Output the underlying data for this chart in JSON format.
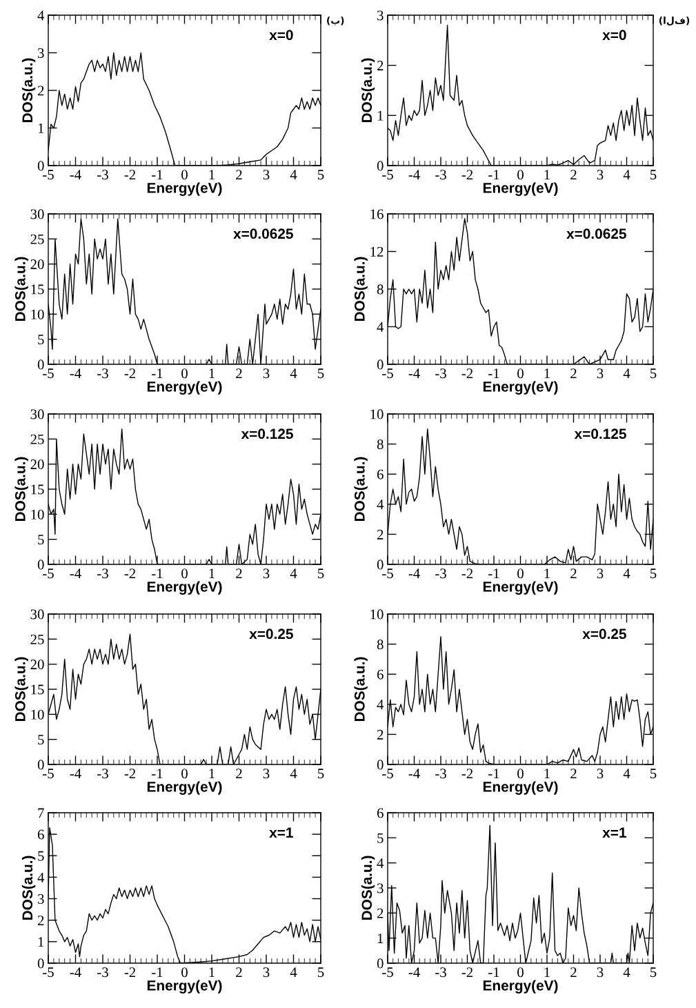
{
  "chart_data": [
    {
      "type": "line",
      "xlabel": "Energy(eV)",
      "ylabel": "DOS(a.u.)",
      "annotations": [
        "x=0",
        "(ب)"
      ],
      "xlim": [
        -5,
        5
      ],
      "xticks": [
        -5,
        -4,
        -3,
        -2,
        -1,
        0,
        1,
        2,
        3,
        4,
        5
      ],
      "ylim": [
        0,
        4
      ],
      "yticks": [
        0,
        1,
        2,
        3,
        4
      ],
      "series": [
        {
          "color": "#000000",
          "x": [
            -5,
            -4.9,
            -4.8,
            -4.7,
            -4.6,
            -4.5,
            -4.4,
            -4.3,
            -4.2,
            -4.1,
            -4.0,
            -3.9,
            -3.8,
            -3.7,
            -3.6,
            -3.5,
            -3.4,
            -3.3,
            -3.2,
            -3.1,
            -3.0,
            -2.9,
            -2.8,
            -2.7,
            -2.6,
            -2.5,
            -2.4,
            -2.3,
            -2.2,
            -2.1,
            -2.0,
            -1.9,
            -1.8,
            -1.7,
            -1.6,
            -1.5,
            -1.3,
            -1.1,
            -0.9,
            -0.7,
            -0.5,
            -0.35,
            1.2,
            1.6,
            2.0,
            2.4,
            2.8,
            3.0,
            3.2,
            3.4,
            3.6,
            3.8,
            3.9,
            4.0,
            4.1,
            4.2,
            4.3,
            4.4,
            4.5,
            4.6,
            4.7,
            4.8,
            4.9,
            5
          ],
          "values": [
            0.4,
            1.1,
            1.0,
            1.3,
            2.0,
            1.6,
            1.9,
            1.5,
            1.8,
            1.5,
            2.1,
            1.7,
            2.2,
            2.3,
            2.5,
            2.7,
            2.8,
            2.5,
            2.8,
            2.6,
            2.7,
            2.5,
            2.9,
            2.3,
            3.0,
            2.4,
            2.8,
            2.5,
            2.9,
            2.5,
            2.9,
            2.5,
            2.8,
            2.5,
            3.0,
            2.3,
            2.0,
            1.6,
            1.3,
            0.9,
            0.4,
            0,
            0,
            0.02,
            0.05,
            0.1,
            0.15,
            0.3,
            0.4,
            0.5,
            0.7,
            1.0,
            1.4,
            1.5,
            1.6,
            1.5,
            1.8,
            1.5,
            1.7,
            1.5,
            1.8,
            1.6,
            1.8,
            1.6
          ]
        }
      ]
    },
    {
      "type": "line",
      "xlabel": "Energy(eV)",
      "ylabel": "DOS(a.u.)",
      "annotations": [
        "x=0",
        "(الف)"
      ],
      "xlim": [
        -5,
        5
      ],
      "xticks": [
        -5,
        -4,
        -3,
        -2,
        -1,
        0,
        1,
        2,
        3,
        4,
        5
      ],
      "ylim": [
        0,
        3
      ],
      "yticks": [
        0,
        1,
        2,
        3
      ],
      "series": [
        {
          "color": "#000000",
          "x": [
            -5,
            -4.9,
            -4.8,
            -4.7,
            -4.6,
            -4.5,
            -4.4,
            -4.3,
            -4.2,
            -4.1,
            -4.0,
            -3.9,
            -3.8,
            -3.7,
            -3.6,
            -3.5,
            -3.4,
            -3.3,
            -3.2,
            -3.1,
            -3.0,
            -2.9,
            -2.75,
            -2.65,
            -2.5,
            -2.4,
            -2.3,
            -2.2,
            -2.1,
            -2.0,
            -1.9,
            -1.8,
            -1.6,
            -1.4,
            -1.2,
            -1.1,
            1.0,
            1.2,
            1.4,
            1.6,
            1.8,
            2.0,
            2.2,
            2.4,
            2.6,
            2.8,
            2.9,
            3.0,
            3.2,
            3.3,
            3.4,
            3.5,
            3.6,
            3.7,
            3.8,
            3.9,
            4.0,
            4.1,
            4.2,
            4.3,
            4.4,
            4.5,
            4.6,
            4.7,
            4.8,
            4.9,
            5
          ],
          "values": [
            0.75,
            0.7,
            0.5,
            0.9,
            0.6,
            1.0,
            1.35,
            0.8,
            1.0,
            0.9,
            1.1,
            1.0,
            1.1,
            1.7,
            1.0,
            1.2,
            1.5,
            1.1,
            1.75,
            1.4,
            1.6,
            1.3,
            2.8,
            1.4,
            1.3,
            1.8,
            1.2,
            1.3,
            1.0,
            0.8,
            0.7,
            0.6,
            0.45,
            0.3,
            0.1,
            0,
            0,
            0.03,
            0.01,
            0.05,
            0.1,
            0.02,
            0.12,
            0.2,
            0.05,
            0.1,
            0.4,
            0.45,
            0.5,
            0.8,
            0.6,
            0.85,
            0.5,
            0.9,
            1.1,
            0.7,
            1.1,
            0.8,
            1.2,
            0.6,
            1.35,
            0.9,
            0.5,
            1.15,
            0.6,
            0.7,
            0.5
          ]
        }
      ]
    },
    {
      "type": "line",
      "xlabel": "Energy(eV)",
      "ylabel": "DOS(a.u.)",
      "annotations": [
        "x=0.0625"
      ],
      "xlim": [
        -5,
        5
      ],
      "xticks": [
        -5,
        -4,
        -3,
        -2,
        -1,
        0,
        1,
        2,
        3,
        4,
        5
      ],
      "ylim": [
        0,
        30
      ],
      "yticks": [
        0,
        5,
        10,
        15,
        20,
        25,
        30
      ],
      "series": [
        {
          "color": "#000000",
          "x": [
            -5,
            -4.9,
            -4.85,
            -4.75,
            -4.6,
            -4.5,
            -4.4,
            -4.3,
            -4.2,
            -4.1,
            -4.0,
            -3.9,
            -3.8,
            -3.7,
            -3.6,
            -3.5,
            -3.4,
            -3.3,
            -3.2,
            -3.1,
            -3.0,
            -2.9,
            -2.8,
            -2.7,
            -2.6,
            -2.45,
            -2.3,
            -2.2,
            -2.1,
            -2.0,
            -1.9,
            -1.8,
            -1.7,
            -1.6,
            -1.5,
            -1.3,
            -1.1,
            -1.0,
            0.8,
            0.9,
            1.0,
            1.5,
            1.55,
            1.6,
            1.9,
            2.0,
            2.1,
            2.3,
            2.4,
            2.5,
            2.7,
            2.8,
            2.95,
            3.0,
            3.2,
            3.3,
            3.4,
            3.5,
            3.6,
            3.7,
            3.8,
            3.9,
            4.0,
            4.1,
            4.2,
            4.3,
            4.4,
            4.5,
            4.6,
            4.7,
            4.8,
            4.9,
            5
          ],
          "values": [
            12,
            7,
            3,
            25,
            12,
            9,
            18,
            10,
            20,
            12,
            22,
            20,
            29,
            25,
            16,
            22,
            14,
            25,
            21,
            23,
            21,
            25,
            16,
            22,
            14,
            29,
            18,
            17,
            15,
            10,
            17,
            10,
            9,
            7,
            9,
            5,
            2,
            0,
            0,
            1,
            0,
            0,
            4,
            0,
            0,
            3.5,
            0,
            0,
            5,
            0,
            10,
            0,
            12,
            8,
            10,
            12,
            9,
            13,
            8,
            12,
            11,
            14,
            19,
            11,
            14,
            10,
            18,
            12,
            12,
            10,
            3,
            7,
            11
          ]
        }
      ]
    },
    {
      "type": "line",
      "xlabel": "Energy(eV)",
      "ylabel": "DOS(a.u.)",
      "annotations": [
        "x=0.0625"
      ],
      "xlim": [
        -5,
        5
      ],
      "xticks": [
        -5,
        -4,
        -3,
        -2,
        -1,
        0,
        1,
        2,
        3,
        4,
        5
      ],
      "ylim": [
        0,
        16
      ],
      "yticks": [
        0,
        4,
        8,
        12,
        16
      ],
      "series": [
        {
          "color": "#000000",
          "x": [
            -5,
            -4.9,
            -4.8,
            -4.7,
            -4.6,
            -4.5,
            -4.4,
            -4.3,
            -4.2,
            -4.1,
            -4.0,
            -3.9,
            -3.8,
            -3.7,
            -3.6,
            -3.5,
            -3.4,
            -3.3,
            -3.2,
            -3.1,
            -3.0,
            -2.9,
            -2.8,
            -2.7,
            -2.6,
            -2.5,
            -2.4,
            -2.3,
            -2.1,
            -2.0,
            -1.9,
            -1.8,
            -1.7,
            -1.6,
            -1.5,
            -1.4,
            -1.3,
            -1.2,
            -1.1,
            -1.0,
            -0.9,
            -0.8,
            -0.7,
            -0.6,
            -0.5,
            2.0,
            2.4,
            2.6,
            3.0,
            3.2,
            3.3,
            3.5,
            3.6,
            3.7,
            3.8,
            3.9,
            4.0,
            4.1,
            4.2,
            4.3,
            4.4,
            4.5,
            4.6,
            4.7,
            4.8,
            4.9,
            5
          ],
          "values": [
            4,
            7,
            9,
            4,
            3.8,
            4,
            8,
            7.5,
            8,
            7.5,
            8,
            4.5,
            8,
            6.5,
            10,
            6,
            8,
            5.5,
            13,
            8,
            10,
            9,
            10.5,
            9,
            12,
            10,
            13.5,
            11,
            15.5,
            14,
            11,
            12,
            9,
            8,
            6.5,
            6,
            5.5,
            5.8,
            3,
            4,
            4.5,
            2,
            1.8,
            1,
            0,
            0,
            0.8,
            0,
            0.5,
            1.5,
            0.5,
            0.5,
            1.5,
            2,
            2.5,
            3.5,
            7.5,
            7,
            4.5,
            5,
            7,
            3.5,
            4,
            7.5,
            4.5,
            6,
            8
          ]
        }
      ]
    },
    {
      "type": "line",
      "xlabel": "Energy(eV)",
      "ylabel": "DOS(a.u.)",
      "annotations": [
        "x=0.125"
      ],
      "xlim": [
        -5,
        5
      ],
      "xticks": [
        -5,
        -4,
        -3,
        -2,
        -1,
        0,
        1,
        2,
        3,
        4,
        5
      ],
      "ylim": [
        0,
        30
      ],
      "yticks": [
        0,
        5,
        10,
        15,
        20,
        25,
        30
      ],
      "series": [
        {
          "color": "#000000",
          "x": [
            -5,
            -4.9,
            -4.8,
            -4.75,
            -4.7,
            -4.6,
            -4.5,
            -4.4,
            -4.3,
            -4.2,
            -4.1,
            -4.0,
            -3.9,
            -3.8,
            -3.7,
            -3.6,
            -3.5,
            -3.4,
            -3.3,
            -3.2,
            -3.1,
            -3.0,
            -2.9,
            -2.8,
            -2.7,
            -2.6,
            -2.5,
            -2.4,
            -2.3,
            -2.2,
            -2.1,
            -2.0,
            -1.9,
            -1.8,
            -1.7,
            -1.6,
            -1.5,
            -1.4,
            -1.3,
            -1.2,
            -1.1,
            -1.0,
            0.8,
            0.9,
            1.0,
            1.5,
            1.55,
            1.6,
            1.9,
            2.0,
            2.1,
            2.3,
            2.4,
            2.5,
            2.6,
            2.7,
            2.8,
            2.9,
            3.0,
            3.1,
            3.2,
            3.3,
            3.4,
            3.5,
            3.6,
            3.7,
            3.8,
            3.9,
            4.0,
            4.1,
            4.2,
            4.3,
            4.4,
            4.5,
            4.6,
            4.7,
            4.8,
            4.9,
            5
          ],
          "values": [
            12,
            10,
            11,
            6,
            25,
            15,
            12,
            10,
            19,
            13,
            20,
            14,
            20,
            17,
            26,
            22,
            18,
            24,
            15,
            24,
            18,
            24,
            20,
            23,
            15,
            23,
            20,
            18,
            27,
            19,
            21,
            19,
            21,
            15,
            12,
            11,
            9,
            7,
            9,
            5,
            3,
            0,
            0,
            1,
            0,
            0,
            3.5,
            0,
            0,
            4,
            0,
            1,
            6,
            4,
            8,
            2,
            0,
            5,
            12,
            9,
            12,
            7,
            12,
            10,
            14,
            8,
            12,
            17,
            14,
            8,
            16,
            11,
            13,
            10,
            8,
            6,
            8,
            7,
            10
          ]
        }
      ]
    },
    {
      "type": "line",
      "xlabel": "Energy(eV)",
      "ylabel": "DOS(a.u.)",
      "annotations": [
        "x=0.125"
      ],
      "xlim": [
        -5,
        5
      ],
      "xticks": [
        -5,
        -4,
        -3,
        -2,
        -1,
        0,
        1,
        2,
        3,
        4,
        5
      ],
      "ylim": [
        0,
        10
      ],
      "yticks": [
        0,
        2,
        4,
        6,
        8,
        10
      ],
      "series": [
        {
          "color": "#000000",
          "x": [
            -5,
            -4.9,
            -4.8,
            -4.7,
            -4.6,
            -4.5,
            -4.4,
            -4.3,
            -4.2,
            -4.1,
            -4.0,
            -3.9,
            -3.8,
            -3.7,
            -3.6,
            -3.5,
            -3.4,
            -3.3,
            -3.2,
            -3.1,
            -3.0,
            -2.9,
            -2.8,
            -2.7,
            -2.6,
            -2.5,
            -2.4,
            -2.3,
            -2.2,
            -2.1,
            -2.0,
            -1.9,
            -1.7,
            -1.5,
            0.9,
            1.1,
            1.3,
            1.5,
            1.7,
            1.8,
            1.9,
            2.0,
            2.1,
            2.3,
            2.5,
            2.7,
            2.8,
            2.9,
            3.0,
            3.1,
            3.2,
            3.3,
            3.4,
            3.5,
            3.6,
            3.7,
            3.8,
            3.9,
            4.0,
            4.1,
            4.2,
            4.3,
            4.4,
            4.5,
            4.6,
            4.7,
            4.8,
            4.9,
            5
          ],
          "values": [
            2,
            4,
            5,
            4,
            4.5,
            3.5,
            7,
            4,
            4.8,
            5,
            4.2,
            4.5,
            5.8,
            8.5,
            6,
            9,
            7,
            4.5,
            6.5,
            5,
            4,
            2.5,
            3,
            2,
            3,
            2,
            1,
            2.5,
            2,
            0.6,
            1.2,
            0.2,
            0.05,
            0,
            0,
            0.3,
            0.5,
            0.2,
            0.1,
            1.0,
            0.3,
            1.2,
            0.2,
            0.5,
            0.5,
            0.3,
            0.7,
            4,
            3,
            2,
            3.5,
            5.5,
            3,
            4,
            2.5,
            6,
            3.5,
            5.3,
            3,
            4.4,
            3,
            2.5,
            2.2,
            2,
            1.5,
            1.2,
            4.2,
            1,
            3
          ]
        }
      ]
    },
    {
      "type": "line",
      "xlabel": "Energy(eV)",
      "ylabel": "DOS(a.u.)",
      "annotations": [
        "x=0.25"
      ],
      "xlim": [
        -5,
        5
      ],
      "xticks": [
        -5,
        -4,
        -3,
        -2,
        -1,
        0,
        1,
        2,
        3,
        4,
        5
      ],
      "ylim": [
        0,
        30
      ],
      "yticks": [
        0,
        5,
        10,
        15,
        20,
        25,
        30
      ],
      "series": [
        {
          "color": "#000000",
          "x": [
            -5,
            -4.9,
            -4.8,
            -4.7,
            -4.6,
            -4.5,
            -4.4,
            -4.3,
            -4.2,
            -4.1,
            -4.0,
            -3.9,
            -3.8,
            -3.7,
            -3.6,
            -3.5,
            -3.4,
            -3.3,
            -3.2,
            -3.1,
            -3.0,
            -2.9,
            -2.8,
            -2.7,
            -2.6,
            -2.5,
            -2.4,
            -2.3,
            -2.2,
            -2.1,
            -2.0,
            -1.9,
            -1.8,
            -1.7,
            -1.6,
            -1.5,
            -1.4,
            -1.3,
            -1.2,
            -1.1,
            -1.0,
            -0.9,
            0.6,
            0.7,
            0.8,
            1.2,
            1.3,
            1.4,
            1.6,
            1.7,
            1.8,
            2.0,
            2.1,
            2.2,
            2.3,
            2.4,
            2.5,
            2.6,
            2.8,
            2.9,
            3.0,
            3.1,
            3.2,
            3.3,
            3.4,
            3.5,
            3.6,
            3.7,
            3.8,
            3.9,
            4.0,
            4.1,
            4.2,
            4.3,
            4.4,
            4.5,
            4.6,
            4.7,
            4.8,
            4.9,
            5
          ],
          "values": [
            10,
            12,
            14,
            9,
            11,
            14,
            21,
            13,
            11,
            19,
            13,
            18,
            16,
            20,
            21,
            23,
            20,
            23,
            21,
            23,
            20,
            22,
            20,
            25,
            21,
            24,
            21,
            23,
            20,
            22,
            26,
            19,
            20,
            14,
            16,
            11,
            13,
            7,
            9,
            5,
            3,
            0,
            0,
            1,
            0,
            0,
            3.5,
            0,
            0,
            3.5,
            0,
            2,
            3,
            6,
            3,
            7.5,
            5,
            4,
            3,
            8,
            11,
            9,
            10,
            9,
            11,
            7,
            12,
            15.5,
            10,
            6,
            13,
            15.5,
            11,
            14,
            10,
            13,
            8,
            10,
            5,
            10,
            15
          ]
        }
      ]
    },
    {
      "type": "line",
      "xlabel": "Energy(eV)",
      "ylabel": "DOS(a.u.)",
      "annotations": [
        "x=0.25"
      ],
      "xlim": [
        -5,
        5
      ],
      "xticks": [
        -5,
        -4,
        -3,
        -2,
        -1,
        0,
        1,
        2,
        3,
        4,
        5
      ],
      "ylim": [
        0,
        10
      ],
      "yticks": [
        0,
        2,
        4,
        6,
        8,
        10
      ],
      "series": [
        {
          "color": "#000000",
          "x": [
            -5,
            -4.9,
            -4.8,
            -4.7,
            -4.6,
            -4.5,
            -4.4,
            -4.3,
            -4.2,
            -4.1,
            -4.0,
            -3.9,
            -3.8,
            -3.7,
            -3.6,
            -3.5,
            -3.4,
            -3.3,
            -3.2,
            -3.1,
            -3.0,
            -2.9,
            -2.8,
            -2.7,
            -2.6,
            -2.5,
            -2.4,
            -2.3,
            -2.2,
            -2.1,
            -2.0,
            -1.9,
            -1.8,
            -1.7,
            -1.6,
            -1.5,
            -1.4,
            -1.3,
            -1.2,
            -1.0,
            1.0,
            1.2,
            1.4,
            1.6,
            1.8,
            2.0,
            2.1,
            2.2,
            2.3,
            2.5,
            2.7,
            2.8,
            2.9,
            3.0,
            3.1,
            3.2,
            3.3,
            3.4,
            3.5,
            3.6,
            3.7,
            3.8,
            3.9,
            4.0,
            4.1,
            4.2,
            4.3,
            4.4,
            4.5,
            4.6,
            4.7,
            4.8,
            4.9,
            5
          ],
          "values": [
            2.5,
            4.3,
            2.5,
            3.8,
            3.5,
            4,
            3.3,
            5.6,
            4,
            3.5,
            4.5,
            7.5,
            4,
            5,
            3.5,
            6,
            4,
            5,
            3.5,
            6,
            8.5,
            5,
            7.5,
            4,
            5,
            6.3,
            3.5,
            5,
            3.5,
            2,
            3,
            1.5,
            1,
            2,
            2.7,
            0.8,
            1.3,
            0.2,
            0.1,
            0,
            0,
            0.2,
            0.1,
            0.3,
            0.2,
            1,
            0.5,
            1.1,
            0.3,
            0.2,
            0.6,
            0.2,
            0.8,
            2,
            2.5,
            1.5,
            3,
            4.5,
            2.5,
            4.2,
            3,
            4.5,
            3,
            4.7,
            3.5,
            4.3,
            4.2,
            4.3,
            3,
            1.2,
            3,
            3.5,
            2,
            2.5
          ]
        }
      ]
    },
    {
      "type": "line",
      "xlabel": "Energy(eV)",
      "ylabel": "DOS(a.u.)",
      "annotations": [
        "x=1"
      ],
      "xlim": [
        -5,
        5
      ],
      "xticks": [
        -5,
        -4,
        -3,
        -2,
        -1,
        0,
        1,
        2,
        3,
        4,
        5
      ],
      "ylim": [
        0,
        7
      ],
      "yticks": [
        0,
        1,
        2,
        3,
        4,
        5,
        6,
        7
      ],
      "series": [
        {
          "color": "#000000",
          "x": [
            -5,
            -4.95,
            -4.85,
            -4.75,
            -4.6,
            -4.5,
            -4.4,
            -4.3,
            -4.2,
            -4.1,
            -4.0,
            -3.9,
            -3.85,
            -3.8,
            -3.7,
            -3.6,
            -3.5,
            -3.4,
            -3.3,
            -3.2,
            -3.1,
            -3.0,
            -2.9,
            -2.8,
            -2.7,
            -2.6,
            -2.5,
            -2.4,
            -2.3,
            -2.2,
            -2.1,
            -2.0,
            -1.9,
            -1.8,
            -1.7,
            -1.6,
            -1.5,
            -1.4,
            -1.3,
            -1.2,
            -1.1,
            -1.0,
            -0.8,
            -0.6,
            -0.4,
            -0.25,
            -0.15,
            0.5,
            1.0,
            1.5,
            2.0,
            2.3,
            2.5,
            2.7,
            2.9,
            3.1,
            3.3,
            3.5,
            3.7,
            3.8,
            3.9,
            4.0,
            4.1,
            4.2,
            4.3,
            4.4,
            4.5,
            4.6,
            4.7,
            4.8,
            4.9,
            5
          ],
          "values": [
            3,
            6.3,
            5.5,
            2,
            1.5,
            1.3,
            1.0,
            1.2,
            0.8,
            1.1,
            0.5,
            0.9,
            0.3,
            0.8,
            1.3,
            1.5,
            2.3,
            2.0,
            2.2,
            2.0,
            2.3,
            2.1,
            2.5,
            2.3,
            2.8,
            3.2,
            3.0,
            3.5,
            3.1,
            3.4,
            3.0,
            3.4,
            3.1,
            3.5,
            3.1,
            3.5,
            3.1,
            3.6,
            3.2,
            3.6,
            3.0,
            2.7,
            2.2,
            1.7,
            1.0,
            0.3,
            0,
            0.05,
            0.1,
            0.2,
            0.3,
            0.4,
            0.6,
            0.9,
            1.2,
            1.3,
            1.5,
            1.4,
            1.7,
            1.5,
            1.9,
            1.2,
            1.8,
            1.2,
            1.9,
            1.3,
            1.6,
            1.0,
            1.8,
            1.0,
            1.7,
            1.1
          ]
        }
      ]
    },
    {
      "type": "line",
      "xlabel": "Energy(eV)",
      "ylabel": "DOS(a.u.)",
      "annotations": [
        "x=1"
      ],
      "xlim": [
        -5,
        5
      ],
      "xticks": [
        -5,
        -4,
        -3,
        -2,
        -1,
        0,
        1,
        2,
        3,
        4,
        5
      ],
      "ylim": [
        0,
        6
      ],
      "yticks": [
        0,
        1,
        2,
        3,
        4,
        5,
        6
      ],
      "series": [
        {
          "color": "#000000",
          "x": [
            -5,
            -4.95,
            -4.85,
            -4.75,
            -4.65,
            -4.55,
            -4.45,
            -4.35,
            -4.3,
            -4.2,
            -4.1,
            -4.0,
            -3.9,
            -3.8,
            -3.7,
            -3.6,
            -3.5,
            -3.4,
            -3.3,
            -3.2,
            -3.1,
            -3.0,
            -2.95,
            -2.85,
            -2.75,
            -2.6,
            -2.5,
            -2.4,
            -2.3,
            -2.2,
            -2.1,
            -2.0,
            -1.9,
            -1.8,
            -1.6,
            -1.5,
            -1.4,
            -1.3,
            -1.25,
            -1.15,
            -1.05,
            -0.95,
            -0.85,
            -0.75,
            -0.6,
            -0.5,
            -0.4,
            -0.3,
            -0.2,
            -0.1,
            0.0,
            0.1,
            0.2,
            0.4,
            0.5,
            0.6,
            0.7,
            0.8,
            0.9,
            1.0,
            1.1,
            1.2,
            1.3,
            1.4,
            1.5,
            1.6,
            1.7,
            1.8,
            1.9,
            2.0,
            2.1,
            2.2,
            2.3,
            2.4,
            2.5,
            2.6,
            3.4,
            3.45,
            3.5,
            4.0,
            4.05,
            4.1,
            4.2,
            4.3,
            4.4,
            4.5,
            4.6,
            4.7,
            4.8,
            4.9,
            5
          ],
          "values": [
            2,
            0.5,
            3.1,
            0.4,
            2.4,
            2.1,
            1.2,
            1.5,
            0.2,
            1.5,
            0,
            0.5,
            2.4,
            0.8,
            1.0,
            2.1,
            1,
            2.0,
            1,
            1,
            0,
            1.5,
            3.3,
            2,
            2.9,
            2,
            0.5,
            2.4,
            1.2,
            2.9,
            1,
            2.5,
            0.5,
            0,
            0.9,
            0,
            0,
            2.7,
            3,
            5.5,
            1.5,
            4.8,
            1.3,
            1.6,
            1.1,
            1.5,
            0.9,
            1.6,
            1.0,
            1.3,
            2.0,
            1.0,
            0,
            0.9,
            2.6,
            1.6,
            2.7,
            0.8,
            1.2,
            0.4,
            1.0,
            3.6,
            0.5,
            0.3,
            0.4,
            0,
            0.2,
            2.2,
            1.5,
            1.9,
            1.3,
            3.0,
            2.0,
            1.2,
            0.7,
            0,
            0,
            0.4,
            0,
            0,
            0.4,
            0,
            1.5,
            0.5,
            1.6,
            1.0,
            1.4,
            0.8,
            0.3,
            2,
            2.4
          ]
        }
      ]
    }
  ]
}
